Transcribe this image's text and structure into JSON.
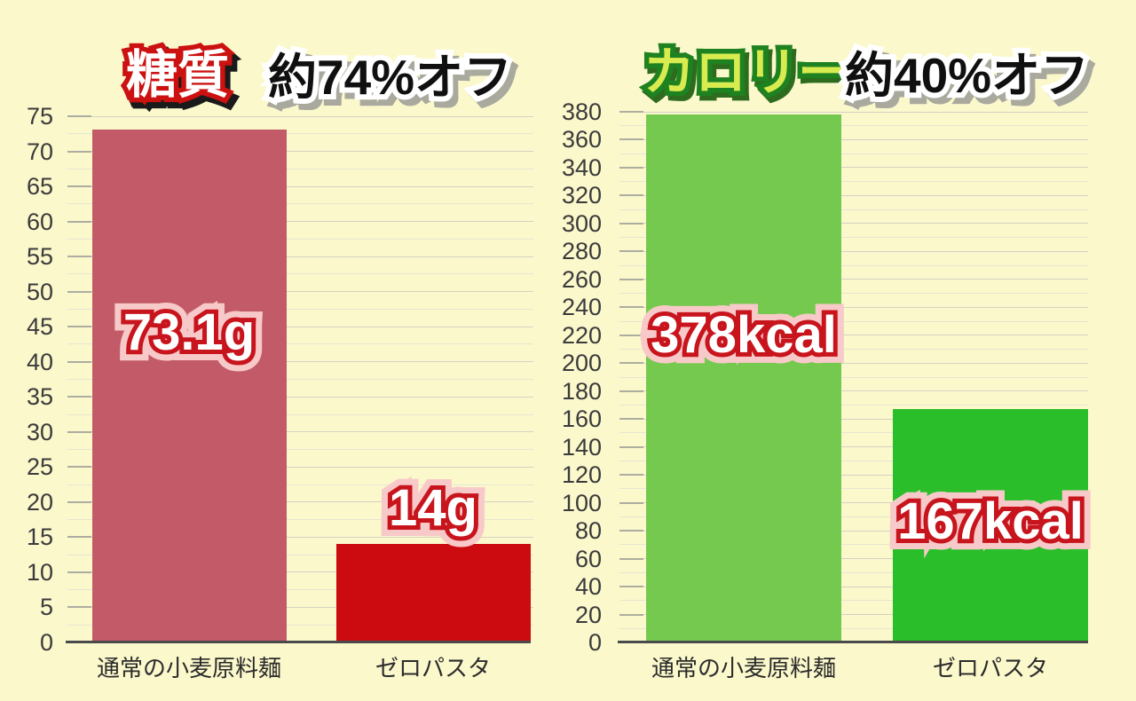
{
  "colors": {
    "background": "#FBF8CC",
    "grid_major": "#D3D3C2",
    "grid_minor": "#E6E6D2",
    "tick": "#ADADA0",
    "axis_line": "#4A4A4A",
    "axis_label": "#3B3B3B",
    "category_label": "#2B2B2B",
    "value_fill": "#FFFFFF",
    "value_outline": "#C8141C",
    "value_glow": "#F8C9C9",
    "badge_red_fill": "#FFFFFF",
    "badge_red_outline": "#CC1111",
    "badge_red_shadow": "#1A1A1A",
    "badge_green_fill": "#D8EB4F",
    "badge_green_outline": "#1E8220",
    "badge_green_shadow": "#2E6B1E",
    "off_fill": "#101010",
    "off_outline": "#FFFFFF",
    "off_shadow": "#A9A99E"
  },
  "chart_data": [
    {
      "type": "bar",
      "title": "糖質 約74%オフ",
      "title_badge": "糖質",
      "title_text": "約74%オフ",
      "categories": [
        "通常の小麦原料麺",
        "ゼロパスタ"
      ],
      "values": [
        73.1,
        14
      ],
      "value_labels": [
        "73.1g",
        "14g"
      ],
      "unit": "g",
      "ylim": [
        0,
        75
      ],
      "y_major_step": 5,
      "y_minor_step": 2.5,
      "y_tick_labels": [
        "0",
        "5",
        "10",
        "15",
        "20",
        "25",
        "30",
        "35",
        "40",
        "45",
        "50",
        "55",
        "60",
        "65",
        "70",
        "75"
      ],
      "bar_colors": [
        "#C25A67",
        "#CB0B10"
      ],
      "grid": true,
      "legend": false
    },
    {
      "type": "bar",
      "title": "カロリー 約40%オフ",
      "title_badge": "カロリー",
      "title_text": "約40%オフ",
      "categories": [
        "通常の小麦原料麺",
        "ゼロパスタ"
      ],
      "values": [
        378,
        167
      ],
      "value_labels": [
        "378kcal",
        "167kcal"
      ],
      "unit": "kcal",
      "ylim": [
        0,
        380
      ],
      "y_major_step": 20,
      "y_minor_step": 10,
      "y_tick_labels": [
        "0",
        "20",
        "40",
        "60",
        "80",
        "100",
        "120",
        "140",
        "160",
        "180",
        "200",
        "220",
        "240",
        "260",
        "280",
        "300",
        "320",
        "340",
        "360",
        "380"
      ],
      "bar_colors": [
        "#76C94F",
        "#2ABE2A"
      ],
      "grid": true,
      "legend": false
    }
  ]
}
